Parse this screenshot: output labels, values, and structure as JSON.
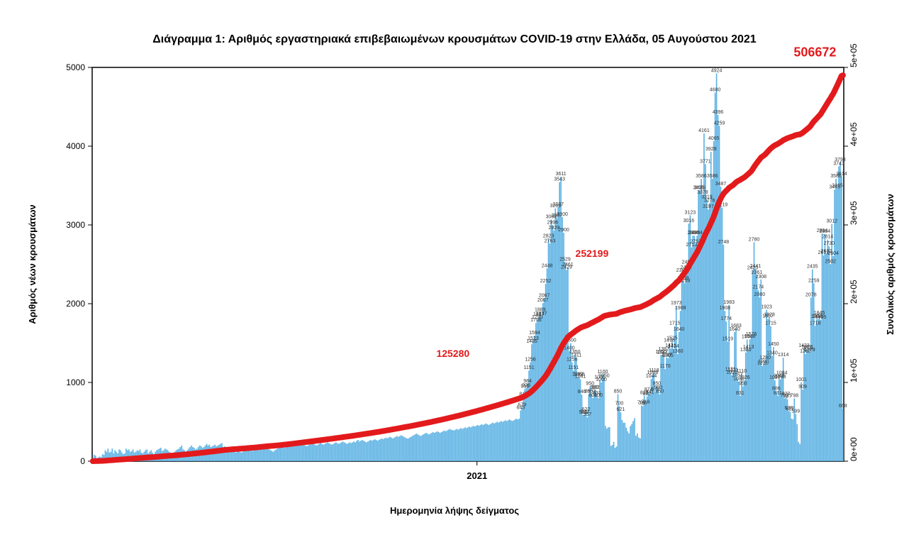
{
  "chart": {
    "type": "bar+line",
    "title": "Διάγραμμα 1: Αριθμός εργαστηριακά επιβεβαιωμένων κρουσμάτων COVID-19 στην Ελλάδα, 05 Αυγούστου 2021",
    "xlabel": "Ημερομηνία λήψης δείγματος",
    "ylabel_left": "Αριθμός νέων κρουσμάτων",
    "ylabel_right": "Συνολικός αριθμός κρουσμάτων",
    "title_fontsize": 16,
    "label_fontsize": 13,
    "background_color": "#ffffff",
    "bar_color": "#5eb3e4",
    "line_color": "#e31a1c",
    "line_width": 8,
    "axis_color": "#000000",
    "barlabel_color": "#333333",
    "barlabel_fontsize": 7,
    "y_left": {
      "min": 0,
      "max": 5000,
      "step": 1000,
      "ticks": [
        0,
        1000,
        2000,
        3000,
        4000,
        5000
      ]
    },
    "y_right": {
      "min": 0,
      "max": 500000,
      "label_format": "sci",
      "ticks": [
        "0e+00",
        "1e+05",
        "2e+05",
        "3e+05",
        "4e+05",
        "5e+05"
      ]
    },
    "x_ticks": [
      {
        "label": "2021",
        "frac": 0.512
      }
    ],
    "cumulative_annotations": [
      {
        "label": "506672",
        "frac_x": 0.99,
        "value": 506672
      },
      {
        "label": "252199",
        "frac_x": 0.665,
        "value": 252199,
        "class": "mid"
      },
      {
        "label": "125280",
        "frac_x": 0.48,
        "value": 125280,
        "class": "mid"
      }
    ],
    "daily_values": [
      20,
      82,
      71,
      11,
      50,
      60,
      50,
      90,
      80,
      140,
      120,
      160,
      110,
      120,
      161,
      100,
      140,
      120,
      100,
      150,
      140,
      110,
      90,
      100,
      160,
      140,
      150,
      120,
      130,
      150,
      110,
      120,
      140,
      130,
      150,
      110,
      100,
      120,
      140,
      150,
      100,
      120,
      140,
      110,
      90,
      120,
      140,
      150,
      160,
      170,
      130,
      140,
      160,
      150,
      140,
      120,
      100,
      90,
      110,
      120,
      140,
      150,
      160,
      180,
      200,
      150,
      140,
      120,
      140,
      160,
      180,
      200,
      180,
      170,
      150,
      160,
      180,
      200,
      190,
      170,
      180,
      200,
      220,
      200,
      210,
      180,
      190,
      200,
      210,
      190,
      200,
      210,
      220,
      230,
      180,
      190,
      180,
      170,
      160,
      150,
      140,
      130,
      120,
      110,
      130,
      140,
      120,
      110,
      120,
      130,
      140,
      150,
      160,
      150,
      140,
      130,
      140,
      150,
      160,
      170,
      180,
      190,
      160,
      170,
      180,
      170,
      160,
      150,
      140,
      130,
      120,
      140,
      150,
      160,
      170,
      180,
      190,
      180,
      170,
      180,
      190,
      200,
      210,
      190,
      200,
      210,
      220,
      200,
      210,
      220,
      230,
      220,
      210,
      200,
      190,
      200,
      210,
      220,
      230,
      220,
      210,
      200,
      210,
      220,
      230,
      220,
      210,
      220,
      230,
      240,
      230,
      220,
      210,
      220,
      230,
      240,
      230,
      220,
      230,
      240,
      250,
      240,
      230,
      220,
      230,
      240,
      230,
      240,
      250,
      240,
      260,
      270,
      250,
      260,
      270,
      260,
      250,
      240,
      250,
      260,
      270,
      260,
      270,
      280,
      270,
      260,
      270,
      280,
      290,
      280,
      290,
      300,
      290,
      300,
      310,
      300,
      290,
      300,
      310,
      320,
      310,
      320,
      330,
      320,
      310,
      300,
      290,
      287,
      300,
      310,
      320,
      330,
      340,
      350,
      340,
      330,
      320,
      330,
      340,
      350,
      360,
      350,
      340,
      350,
      360,
      370,
      360,
      370,
      380,
      370,
      360,
      370,
      380,
      390,
      380,
      390,
      400,
      410,
      400,
      395,
      390,
      400,
      410,
      400,
      410,
      420,
      410,
      420,
      430,
      420,
      430,
      440,
      430,
      440,
      450,
      440,
      450,
      460,
      450,
      460,
      470,
      460,
      470,
      480,
      470,
      460,
      470,
      480,
      490,
      480,
      490,
      500,
      490,
      500,
      510,
      500,
      510,
      520,
      510,
      520,
      530,
      520,
      510,
      520,
      530,
      540,
      530,
      540,
      645,
      679,
      817,
      915,
      928,
      984,
      1151,
      1256,
      1485,
      1523,
      1594,
      1756,
      1795,
      1827,
      1889,
      1837,
      2007,
      2067,
      2252,
      2448,
      2823,
      2763,
      3068,
      2996,
      2929,
      3209,
      3087,
      3227,
      3543,
      3611,
      3100,
      2900,
      2529,
      2429,
      2461,
      1400,
      1500,
      1256,
      1151,
      1350,
      1311,
      1069,
      1068,
      1041,
      846,
      586,
      589,
      622,
      557,
      850,
      950,
      852,
      802,
      900,
      902,
      831,
      800,
      1031,
      1000,
      1100,
      1050,
      449,
      414,
      430,
      434,
      194,
      207,
      245,
      169,
      187,
      850,
      700,
      621,
      523,
      489,
      488,
      426,
      382,
      353,
      447,
      473,
      510,
      547,
      323,
      353,
      300,
      290,
      708,
      700,
      833,
      716,
      822,
      874,
      841,
      1044,
      1088,
      1118,
      879,
      950,
      900,
      850,
      1350,
      1347,
      1387,
      1170,
      1317,
      1305,
      1498,
      1431,
      1525,
      1424,
      1715,
      1973,
      1360,
      1640,
      1908,
      2388,
      2289,
      2259,
      2423,
      2493,
      3016,
      3123,
      2713,
      2864,
      2863,
      2752,
      2864,
      3435,
      3435,
      3586,
      3378,
      4161,
      3771,
      3319,
      3197,
      3276,
      3928,
      3586,
      4065,
      4680,
      4924,
      4396,
      4259,
      3487,
      3219,
      2748,
      1908,
      1774,
      1519,
      1983,
      1131,
      1091,
      1121,
      1640,
      1683,
      1057,
      1010,
      831,
      1110,
      950,
      1026,
      1380,
      1544,
      1413,
      1548,
      1576,
      2420,
      2780,
      2441,
      2361,
      2174,
      2080,
      2308,
      1211,
      1231,
      1280,
      1923,
      1807,
      1823,
      1715,
      1340,
      1450,
      1027,
      886,
      831,
      1048,
      1038,
      1084,
      1314,
      797,
      822,
      787,
      638,
      627,
      541,
      533,
      798,
      599,
      471,
      245,
      219,
      1001,
      909,
      1433,
      1362,
      1412,
      1411,
      1379,
      2078,
      2435,
      2259,
      1718,
      1802,
      1806,
      1845,
      1795,
      2894,
      2612,
      2884,
      2632,
      2814,
      2730,
      2502,
      3012,
      2604,
      3448,
      3586,
      3465,
      3743,
      3793,
      3614,
      668
    ]
  }
}
